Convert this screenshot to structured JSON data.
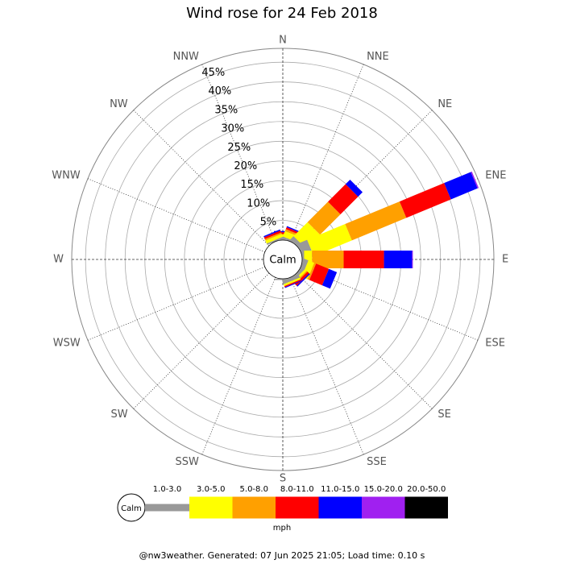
{
  "chart_data": {
    "type": "windrose",
    "title": "Wind rose for 24 Feb 2018",
    "directions": [
      "N",
      "NNE",
      "NE",
      "ENE",
      "E",
      "ESE",
      "SE",
      "SSE",
      "S",
      "SSW",
      "SW",
      "WSW",
      "W",
      "WNW",
      "NW",
      "NNW"
    ],
    "calm_label": "Calm",
    "units": "mph",
    "rlim": [
      0,
      48.5
    ],
    "rticks": [
      {
        "value": 5,
        "label": "5%"
      },
      {
        "value": 10,
        "label": "10%"
      },
      {
        "value": 15,
        "label": "15%"
      },
      {
        "value": 20,
        "label": "20%"
      },
      {
        "value": 25,
        "label": "25%"
      },
      {
        "value": 30,
        "label": "30%"
      },
      {
        "value": 35,
        "label": "35%"
      },
      {
        "value": 40,
        "label": "40%"
      },
      {
        "value": 45,
        "label": "45%"
      }
    ],
    "series": [
      {
        "name": "1.0-3.0",
        "color": "#999999",
        "values": [
          0.5,
          0.5,
          1.2,
          2.7,
          0.5,
          1.2,
          0.8,
          1.0,
          0.3,
          0,
          0,
          0,
          0,
          0,
          0,
          0.4
        ]
      },
      {
        "name": "3.0-5.0",
        "color": "#ffff00",
        "values": [
          1.0,
          1.5,
          5.0,
          10.4,
          2.0,
          1.6,
          0.6,
          0.5,
          0,
          0,
          0,
          0,
          0,
          0,
          0,
          0.8
        ]
      },
      {
        "name": "5.0-8.0",
        "color": "#ffa000",
        "values": [
          0,
          0.5,
          7.3,
          14.9,
          8.0,
          0.5,
          0.3,
          0,
          0,
          0,
          0,
          0,
          0,
          0,
          0,
          0.4
        ]
      },
      {
        "name": "8.0-11.0",
        "color": "#ff0000",
        "values": [
          0.5,
          0.5,
          6.3,
          12.2,
          10.2,
          3.5,
          0.6,
          0.3,
          0,
          0,
          0,
          0,
          0,
          0,
          0,
          0.5
        ]
      },
      {
        "name": "11.0-15.0",
        "color": "#0000ff",
        "values": [
          0.3,
          0.3,
          1.6,
          7.3,
          7.1,
          2.2,
          0.3,
          0.2,
          0,
          0,
          0,
          0,
          0,
          0,
          0,
          0.3
        ]
      },
      {
        "name": "15.0-20.0",
        "color": "#a020f0",
        "values": [
          0,
          0,
          0,
          0.3,
          0.2,
          0,
          0,
          0,
          0,
          0,
          0,
          0,
          0,
          0,
          0,
          0
        ]
      },
      {
        "name": "20.0-50.0",
        "color": "#000000",
        "values": [
          0,
          0,
          0,
          0,
          0,
          0,
          0,
          0,
          0,
          0,
          0,
          0,
          0,
          0,
          0,
          0
        ]
      }
    ],
    "footer": "@nw3weather. Generated: 07 Jun 2025 21:05; Load time: 0.10 s"
  }
}
